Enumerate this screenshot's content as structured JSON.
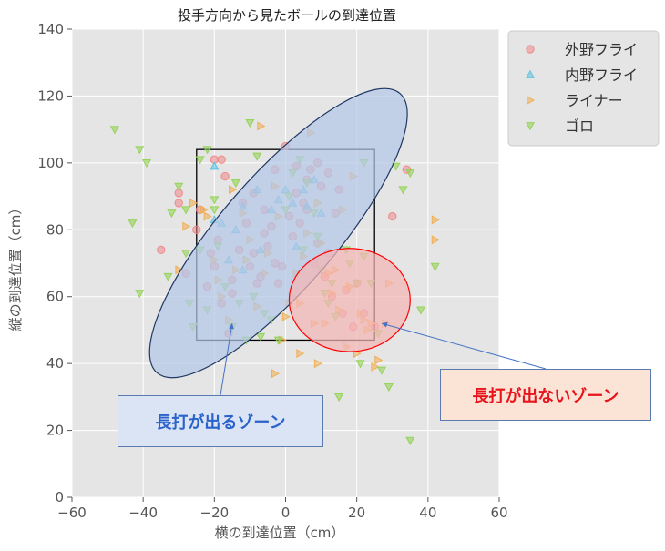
{
  "chart_data": {
    "type": "scatter",
    "title": "投手方向から見たボールの到達位置",
    "xlabel": "横の到達位置（cm）",
    "ylabel": "縦の到達位置（cm）",
    "xlim": [
      -60,
      60
    ],
    "ylim": [
      0,
      140
    ],
    "xticks": [
      -60,
      -40,
      -20,
      0,
      20,
      40,
      60
    ],
    "yticks": [
      0,
      20,
      40,
      60,
      80,
      100,
      120,
      140
    ],
    "grid": true,
    "legend_position": "top-right",
    "strike_zone": {
      "x": [
        -25,
        25
      ],
      "y": [
        47,
        104
      ]
    },
    "series": [
      {
        "name": "外野フライ",
        "marker": "circle",
        "color": "#f08080",
        "points": [
          [
            -35,
            74
          ],
          [
            -30,
            91
          ],
          [
            -30,
            88
          ],
          [
            -20,
            101
          ],
          [
            -18,
            101
          ],
          [
            -17,
            96
          ],
          [
            -12,
            88
          ],
          [
            -9,
            91
          ],
          [
            -6,
            86
          ],
          [
            -3,
            98
          ],
          [
            0,
            105
          ],
          [
            3,
            99
          ],
          [
            6,
            95
          ],
          [
            7,
            98
          ],
          [
            9,
            100
          ],
          [
            12,
            97
          ],
          [
            15,
            92
          ],
          [
            -28,
            67
          ],
          [
            -25,
            80
          ],
          [
            -21,
            73
          ],
          [
            -18,
            58
          ],
          [
            -15,
            61
          ],
          [
            -13,
            74
          ],
          [
            -10,
            69
          ],
          [
            -7,
            66
          ],
          [
            -5,
            75
          ],
          [
            -3,
            70
          ],
          [
            -1,
            69
          ],
          [
            2,
            78
          ],
          [
            4,
            82
          ],
          [
            6,
            86
          ],
          [
            9,
            76
          ],
          [
            11,
            66
          ],
          [
            13,
            60
          ],
          [
            16,
            55
          ],
          [
            19,
            51
          ],
          [
            22,
            55
          ],
          [
            25,
            51
          ],
          [
            30,
            84
          ],
          [
            -24,
            86
          ],
          [
            -19,
            77
          ],
          [
            -15,
            65
          ],
          [
            -11,
            82
          ],
          [
            -8,
            64
          ],
          [
            -4,
            81
          ],
          [
            -2,
            64
          ],
          [
            1,
            84
          ],
          [
            3,
            91
          ],
          [
            5,
            88
          ],
          [
            8,
            70
          ],
          [
            10,
            93
          ],
          [
            14,
            85
          ],
          [
            17,
            62
          ],
          [
            20,
            64
          ],
          [
            -22,
            63
          ],
          [
            -16,
            49
          ],
          [
            -20,
            69
          ],
          [
            -6,
            79
          ],
          [
            -9,
            73
          ],
          [
            12,
            73
          ],
          [
            34,
            98
          ]
        ]
      },
      {
        "name": "内野フライ",
        "marker": "triangle-up",
        "color": "#5bc0de",
        "points": [
          [
            -20,
            99
          ],
          [
            -20,
            83
          ],
          [
            -18,
            82
          ],
          [
            -12,
            87
          ],
          [
            -7,
            74
          ],
          [
            -4,
            86
          ],
          [
            -2,
            89
          ],
          [
            0,
            92
          ],
          [
            2,
            88
          ],
          [
            5,
            92
          ],
          [
            8,
            95
          ],
          [
            10,
            85
          ],
          [
            -14,
            80
          ],
          [
            -16,
            71
          ],
          [
            3,
            75
          ],
          [
            -8,
            92
          ],
          [
            6,
            87
          ],
          [
            -12,
            68
          ]
        ]
      },
      {
        "name": "ライナー",
        "marker": "triangle-right",
        "color": "#f0ad4e",
        "points": [
          [
            -30,
            68
          ],
          [
            -28,
            81
          ],
          [
            -26,
            88
          ],
          [
            -22,
            84
          ],
          [
            -20,
            71
          ],
          [
            -18,
            60
          ],
          [
            -16,
            53
          ],
          [
            -14,
            68
          ],
          [
            -12,
            85
          ],
          [
            -10,
            77
          ],
          [
            -7,
            111
          ],
          [
            -5,
            73
          ],
          [
            -3,
            93
          ],
          [
            -1,
            47
          ],
          [
            0,
            54
          ],
          [
            2,
            60
          ],
          [
            3,
            67
          ],
          [
            4,
            58
          ],
          [
            5,
            72
          ],
          [
            6,
            79
          ],
          [
            8,
            52
          ],
          [
            9,
            88
          ],
          [
            10,
            76
          ],
          [
            11,
            52
          ],
          [
            12,
            67
          ],
          [
            13,
            61
          ],
          [
            15,
            56
          ],
          [
            16,
            86
          ],
          [
            17,
            45
          ],
          [
            19,
            96
          ],
          [
            20,
            43
          ],
          [
            21,
            55
          ],
          [
            22,
            53
          ],
          [
            24,
            52
          ],
          [
            25,
            39
          ],
          [
            26,
            41
          ],
          [
            28,
            52
          ],
          [
            29,
            64
          ],
          [
            -3,
            37
          ],
          [
            1,
            58
          ],
          [
            4,
            43
          ],
          [
            -23,
            86
          ],
          [
            -19,
            65
          ],
          [
            -15,
            92
          ],
          [
            -11,
            71
          ],
          [
            -6,
            67
          ],
          [
            -2,
            84
          ],
          [
            7,
            109
          ],
          [
            9,
            40
          ],
          [
            14,
            68
          ],
          [
            18,
            63
          ],
          [
            23,
            50
          ],
          [
            42,
            83
          ],
          [
            42,
            77
          ],
          [
            -8,
            57
          ]
        ]
      },
      {
        "name": "ゴロ",
        "marker": "triangle-down",
        "color": "#8fd14f",
        "points": [
          [
            -48,
            110
          ],
          [
            -43,
            82
          ],
          [
            -41,
            104
          ],
          [
            -39,
            100
          ],
          [
            -41,
            61
          ],
          [
            -33,
            66
          ],
          [
            -32,
            85
          ],
          [
            -30,
            93
          ],
          [
            -28,
            86
          ],
          [
            -28,
            73
          ],
          [
            -27,
            58
          ],
          [
            -26,
            51
          ],
          [
            -24,
            101
          ],
          [
            -22,
            104
          ],
          [
            -22,
            56
          ],
          [
            -20,
            89
          ],
          [
            -19,
            75
          ],
          [
            -17,
            63
          ],
          [
            -15,
            51
          ],
          [
            -13,
            58
          ],
          [
            -11,
            47
          ],
          [
            -10,
            112
          ],
          [
            -9,
            60
          ],
          [
            -7,
            48
          ],
          [
            -6,
            55
          ],
          [
            -4,
            53
          ],
          [
            -2,
            47
          ],
          [
            1,
            90
          ],
          [
            2,
            97
          ],
          [
            4,
            101
          ],
          [
            6,
            94
          ],
          [
            8,
            85
          ],
          [
            9,
            78
          ],
          [
            10,
            68
          ],
          [
            11,
            61
          ],
          [
            12,
            58
          ],
          [
            13,
            64
          ],
          [
            14,
            54
          ],
          [
            15,
            30
          ],
          [
            17,
            74
          ],
          [
            18,
            70
          ],
          [
            20,
            64
          ],
          [
            21,
            40
          ],
          [
            22,
            100
          ],
          [
            22,
            72
          ],
          [
            24,
            64
          ],
          [
            26,
            49
          ],
          [
            27,
            38
          ],
          [
            29,
            33
          ],
          [
            31,
            99
          ],
          [
            33,
            92
          ],
          [
            35,
            97
          ],
          [
            35,
            17
          ],
          [
            38,
            56
          ],
          [
            42,
            69
          ],
          [
            -8,
            102
          ],
          [
            -20,
            86
          ],
          [
            -24,
            74
          ],
          [
            0,
            86
          ],
          [
            5,
            74
          ],
          [
            -14,
            94
          ]
        ]
      }
    ],
    "ellipses": [
      {
        "cx": -2,
        "cy": 79,
        "rx": 52,
        "ry": 16,
        "angle_deg": 49,
        "fill": "#b4c7e7",
        "stroke": "#1f3864"
      },
      {
        "cx": 18,
        "cy": 59,
        "rx": 17,
        "ry": 14.5,
        "angle_deg": 0,
        "fill": "#f4b6b6",
        "stroke": "#ff0000"
      }
    ],
    "annotations": [
      {
        "id": "blue",
        "text": "長打が出るゾーン",
        "points_to": [
          -15,
          52
        ]
      },
      {
        "id": "red",
        "text": "長打が出ないゾーン",
        "points_to": [
          27,
          52
        ]
      }
    ]
  }
}
